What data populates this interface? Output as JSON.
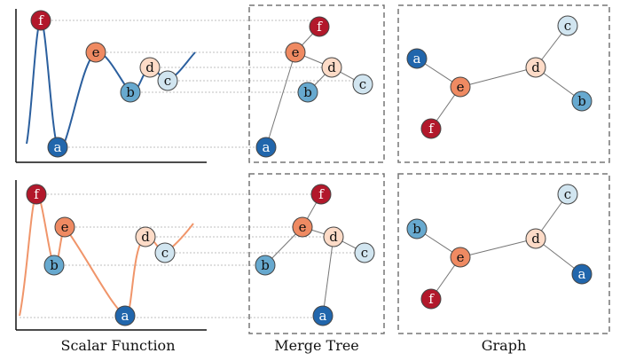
{
  "palette": {
    "a": "#2166ac",
    "b": "#67a9cf",
    "c": "#d1e5f0",
    "d": "#fddbc7",
    "e": "#ef8a62",
    "f": "#b2182b",
    "blue_line": "#2b5f9e",
    "orange_line": "#f0956a",
    "guide": "#aaaaaa",
    "box": "#777777",
    "tree_edge": "#777777"
  },
  "captions": {
    "scalar": "Scalar Function",
    "merge": "Merge Tree",
    "graph": "Graph"
  },
  "rows": [
    {
      "id": "top",
      "scalar_nodes": [
        {
          "key": "f",
          "label": "f",
          "fg": "#ffffff"
        },
        {
          "key": "a",
          "label": "a",
          "fg": "#ffffff"
        },
        {
          "key": "e",
          "label": "e",
          "fg": "#111111"
        },
        {
          "key": "b",
          "label": "b",
          "fg": "#111111"
        },
        {
          "key": "d",
          "label": "d",
          "fg": "#111111"
        },
        {
          "key": "c",
          "label": "c",
          "fg": "#111111"
        }
      ],
      "tree_nodes": [
        {
          "key": "f",
          "label": "f",
          "fg": "#ffffff"
        },
        {
          "key": "e",
          "label": "e",
          "fg": "#111111"
        },
        {
          "key": "d",
          "label": "d",
          "fg": "#111111"
        },
        {
          "key": "b",
          "label": "b",
          "fg": "#111111"
        },
        {
          "key": "c",
          "label": "c",
          "fg": "#111111"
        },
        {
          "key": "a",
          "label": "a",
          "fg": "#ffffff"
        }
      ],
      "graph_nodes": [
        {
          "key": "a",
          "label": "a",
          "fg": "#ffffff"
        },
        {
          "key": "c",
          "label": "c",
          "fg": "#111111"
        },
        {
          "key": "d",
          "label": "d",
          "fg": "#111111"
        },
        {
          "key": "e",
          "label": "e",
          "fg": "#111111"
        },
        {
          "key": "b",
          "label": "b",
          "fg": "#111111"
        },
        {
          "key": "f",
          "label": "f",
          "fg": "#ffffff"
        }
      ]
    },
    {
      "id": "bottom",
      "scalar_nodes": [
        {
          "key": "f",
          "label": "f",
          "fg": "#ffffff"
        },
        {
          "key": "e",
          "label": "e",
          "fg": "#111111"
        },
        {
          "key": "b",
          "label": "b",
          "fg": "#111111"
        },
        {
          "key": "d",
          "label": "d",
          "fg": "#111111"
        },
        {
          "key": "c",
          "label": "c",
          "fg": "#111111"
        },
        {
          "key": "a",
          "label": "a",
          "fg": "#ffffff"
        }
      ],
      "tree_nodes": [
        {
          "key": "f",
          "label": "f",
          "fg": "#ffffff"
        },
        {
          "key": "e",
          "label": "e",
          "fg": "#111111"
        },
        {
          "key": "d",
          "label": "d",
          "fg": "#111111"
        },
        {
          "key": "b",
          "label": "b",
          "fg": "#111111"
        },
        {
          "key": "c",
          "label": "c",
          "fg": "#111111"
        },
        {
          "key": "a",
          "label": "a",
          "fg": "#ffffff"
        }
      ],
      "graph_nodes": [
        {
          "key": "b",
          "label": "b",
          "fg": "#111111"
        },
        {
          "key": "c",
          "label": "c",
          "fg": "#111111"
        },
        {
          "key": "d",
          "label": "d",
          "fg": "#111111"
        },
        {
          "key": "e",
          "label": "e",
          "fg": "#111111"
        },
        {
          "key": "a",
          "label": "a",
          "fg": "#ffffff"
        },
        {
          "key": "f",
          "label": "f",
          "fg": "#ffffff"
        }
      ]
    }
  ]
}
